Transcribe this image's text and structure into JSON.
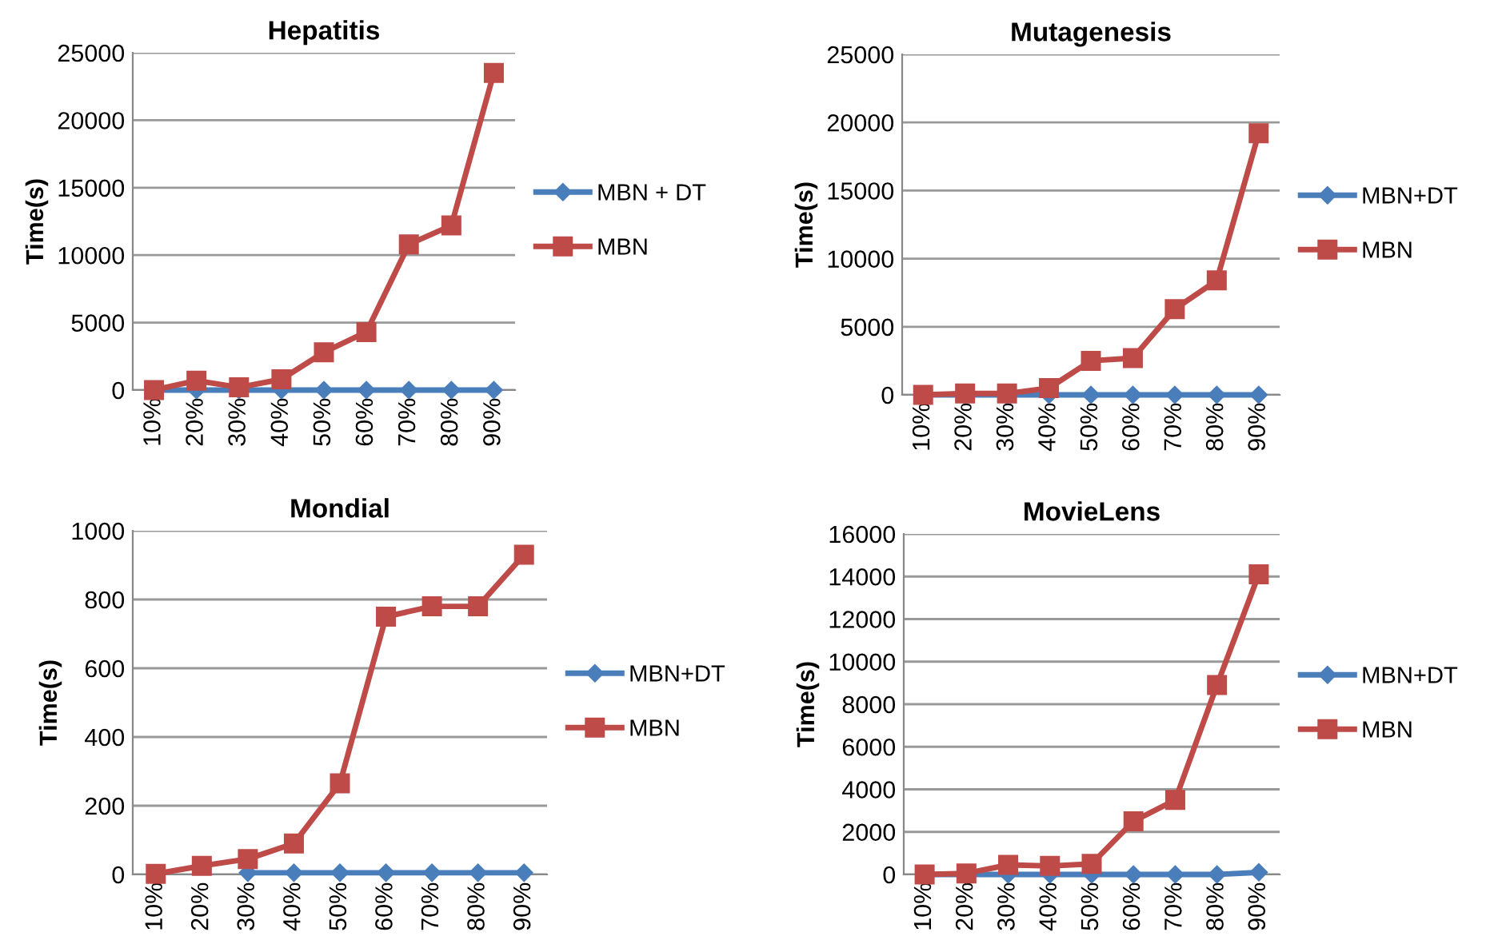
{
  "chart_data": [
    {
      "type": "line",
      "title": "Hepatitis",
      "ylabel": "Time(s)",
      "categories": [
        "10%",
        "20%",
        "30%",
        "40%",
        "50%",
        "60%",
        "70%",
        "80%",
        "90%"
      ],
      "ylim": [
        0,
        25000
      ],
      "yticks": [
        0,
        5000,
        10000,
        15000,
        20000,
        25000
      ],
      "grid": "y",
      "legend": "right",
      "series": [
        {
          "name": "MBN + DT",
          "color": "#4a7ebb",
          "marker": "diamond",
          "values": [
            0,
            0,
            0,
            0,
            0,
            0,
            0,
            0,
            0
          ]
        },
        {
          "name": "MBN",
          "color": "#be4b48",
          "marker": "square",
          "values": [
            0,
            700,
            200,
            800,
            2800,
            4300,
            10800,
            12200,
            23500
          ]
        }
      ]
    },
    {
      "type": "line",
      "title": "Mutagenesis",
      "ylabel": "Time(s)",
      "categories": [
        "10%",
        "20%",
        "30%",
        "40%",
        "50%",
        "60%",
        "70%",
        "80%",
        "90%"
      ],
      "ylim": [
        0,
        25000
      ],
      "yticks": [
        0,
        5000,
        10000,
        15000,
        20000,
        25000
      ],
      "grid": "y",
      "legend": "right",
      "series": [
        {
          "name": "MBN+DT",
          "color": "#4a7ebb",
          "marker": "diamond",
          "values": [
            0,
            0,
            0,
            0,
            0,
            0,
            0,
            0,
            0
          ]
        },
        {
          "name": "MBN",
          "color": "#be4b48",
          "marker": "square",
          "values": [
            0,
            100,
            100,
            500,
            2500,
            2700,
            6300,
            8400,
            19200
          ]
        }
      ]
    },
    {
      "type": "line",
      "title": "Mondial",
      "ylabel": "Time(s)",
      "categories": [
        "10%",
        "20%",
        "30%",
        "40%",
        "50%",
        "60%",
        "70%",
        "80%",
        "90%"
      ],
      "ylim": [
        0,
        1000
      ],
      "yticks": [
        0,
        200,
        400,
        600,
        800,
        1000
      ],
      "grid": "y",
      "legend": "right",
      "series": [
        {
          "name": "MBN+DT",
          "color": "#4a7ebb",
          "marker": "diamond",
          "values": [
            null,
            null,
            5,
            5,
            5,
            5,
            5,
            5,
            5
          ]
        },
        {
          "name": "MBN",
          "color": "#be4b48",
          "marker": "square",
          "values": [
            2,
            25,
            45,
            90,
            265,
            750,
            780,
            780,
            930
          ]
        }
      ]
    },
    {
      "type": "line",
      "title": "MovieLens",
      "ylabel": "Time(s)",
      "categories": [
        "10%",
        "20%",
        "30%",
        "40%",
        "50%",
        "60%",
        "70%",
        "80%",
        "90%"
      ],
      "ylim": [
        0,
        16000
      ],
      "yticks": [
        0,
        2000,
        4000,
        6000,
        8000,
        10000,
        12000,
        14000,
        16000
      ],
      "grid": "y",
      "legend": "right",
      "series": [
        {
          "name": "MBN+DT",
          "color": "#4a7ebb",
          "marker": "diamond",
          "values": [
            0,
            0,
            0,
            0,
            0,
            0,
            0,
            0,
            100
          ]
        },
        {
          "name": "MBN",
          "color": "#be4b48",
          "marker": "square",
          "values": [
            0,
            50,
            450,
            400,
            500,
            2500,
            3500,
            8900,
            14100
          ]
        }
      ]
    }
  ]
}
